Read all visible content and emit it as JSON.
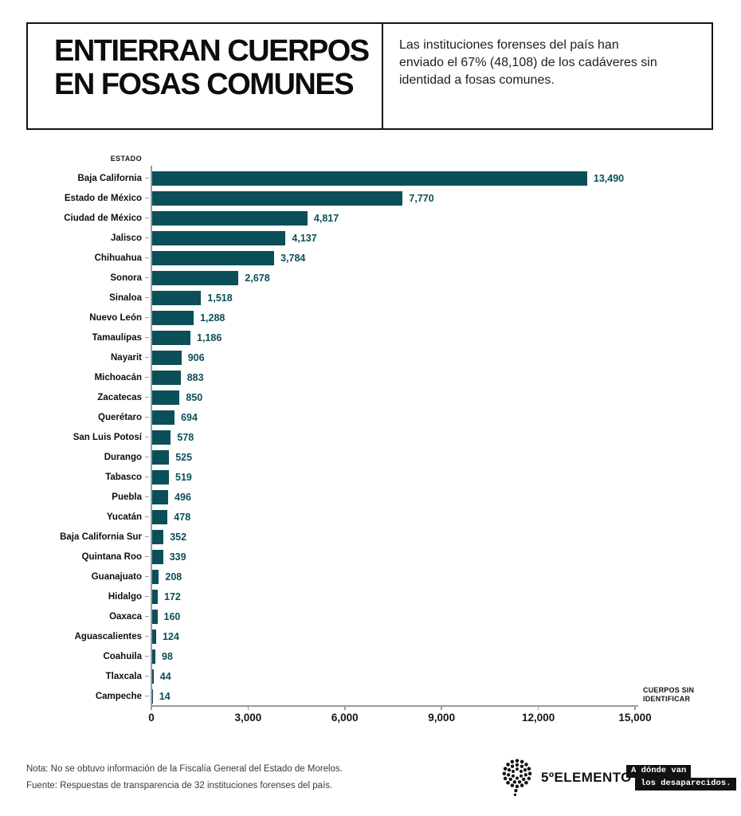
{
  "header": {
    "title_line1": "ENTIERRAN CUERPOS",
    "title_line2": "EN FOSAS COMUNES",
    "subtitle": "Las instituciones forenses del país han\nenviado el 67% (48,108) de los cadáveres sin\nidentidad a fosas comunes."
  },
  "chart_data": {
    "type": "bar",
    "orientation": "horizontal",
    "column_header": "ESTADO",
    "xlabel": "CUERPOS SIN IDENTIFICAR",
    "xlabel_wrapped": "CUERPOS SIN\nIDENTIFICAR",
    "xlim": [
      0,
      15000
    ],
    "x_ticks": [
      "0",
      "3,000",
      "6,000",
      "9,000",
      "12,000",
      "15,000"
    ],
    "x_tick_values": [
      0,
      3000,
      6000,
      9000,
      12000,
      15000
    ],
    "grid": false,
    "bar_color": "#0b4f58",
    "axis_color": "#9b9b9b",
    "categories": [
      "Baja California",
      "Estado de México",
      "Ciudad de México",
      "Jalisco",
      "Chihuahua",
      "Sonora",
      "Sinaloa",
      "Nuevo León",
      "Tamaulipas",
      "Nayarit",
      "Michoacán",
      "Zacatecas",
      "Querétaro",
      "San Luis Potosí",
      "Durango",
      "Tabasco",
      "Puebla",
      "Yucatán",
      "Baja California Sur",
      "Quintana Roo",
      "Guanajuato",
      "Hidalgo",
      "Oaxaca",
      "Aguascalientes",
      "Coahuila",
      "Tlaxcala",
      "Campeche"
    ],
    "values": [
      13490,
      7770,
      4817,
      4137,
      3784,
      2678,
      1518,
      1288,
      1186,
      906,
      883,
      850,
      694,
      578,
      525,
      519,
      496,
      478,
      352,
      339,
      208,
      172,
      160,
      124,
      98,
      44,
      14
    ],
    "value_labels": [
      "13,490",
      "7,770",
      "4,817",
      "4,137",
      "3,784",
      "2,678",
      "1,518",
      "1,288",
      "1,186",
      "906",
      "883",
      "850",
      "694",
      "578",
      "525",
      "519",
      "496",
      "478",
      "352",
      "339",
      "208",
      "172",
      "160",
      "124",
      "98",
      "44",
      "14"
    ]
  },
  "footer": {
    "note": "Nota: No se obtuvo información de la Fiscalía General del Estado de Morelos.",
    "source": "Fuente: Respuestas de transparencia de 32 instituciones forenses del país.",
    "logo1_text": "5ºELEMENTO",
    "logo2_line1": "A dónde van",
    "logo2_line2": "los desaparecidos."
  }
}
